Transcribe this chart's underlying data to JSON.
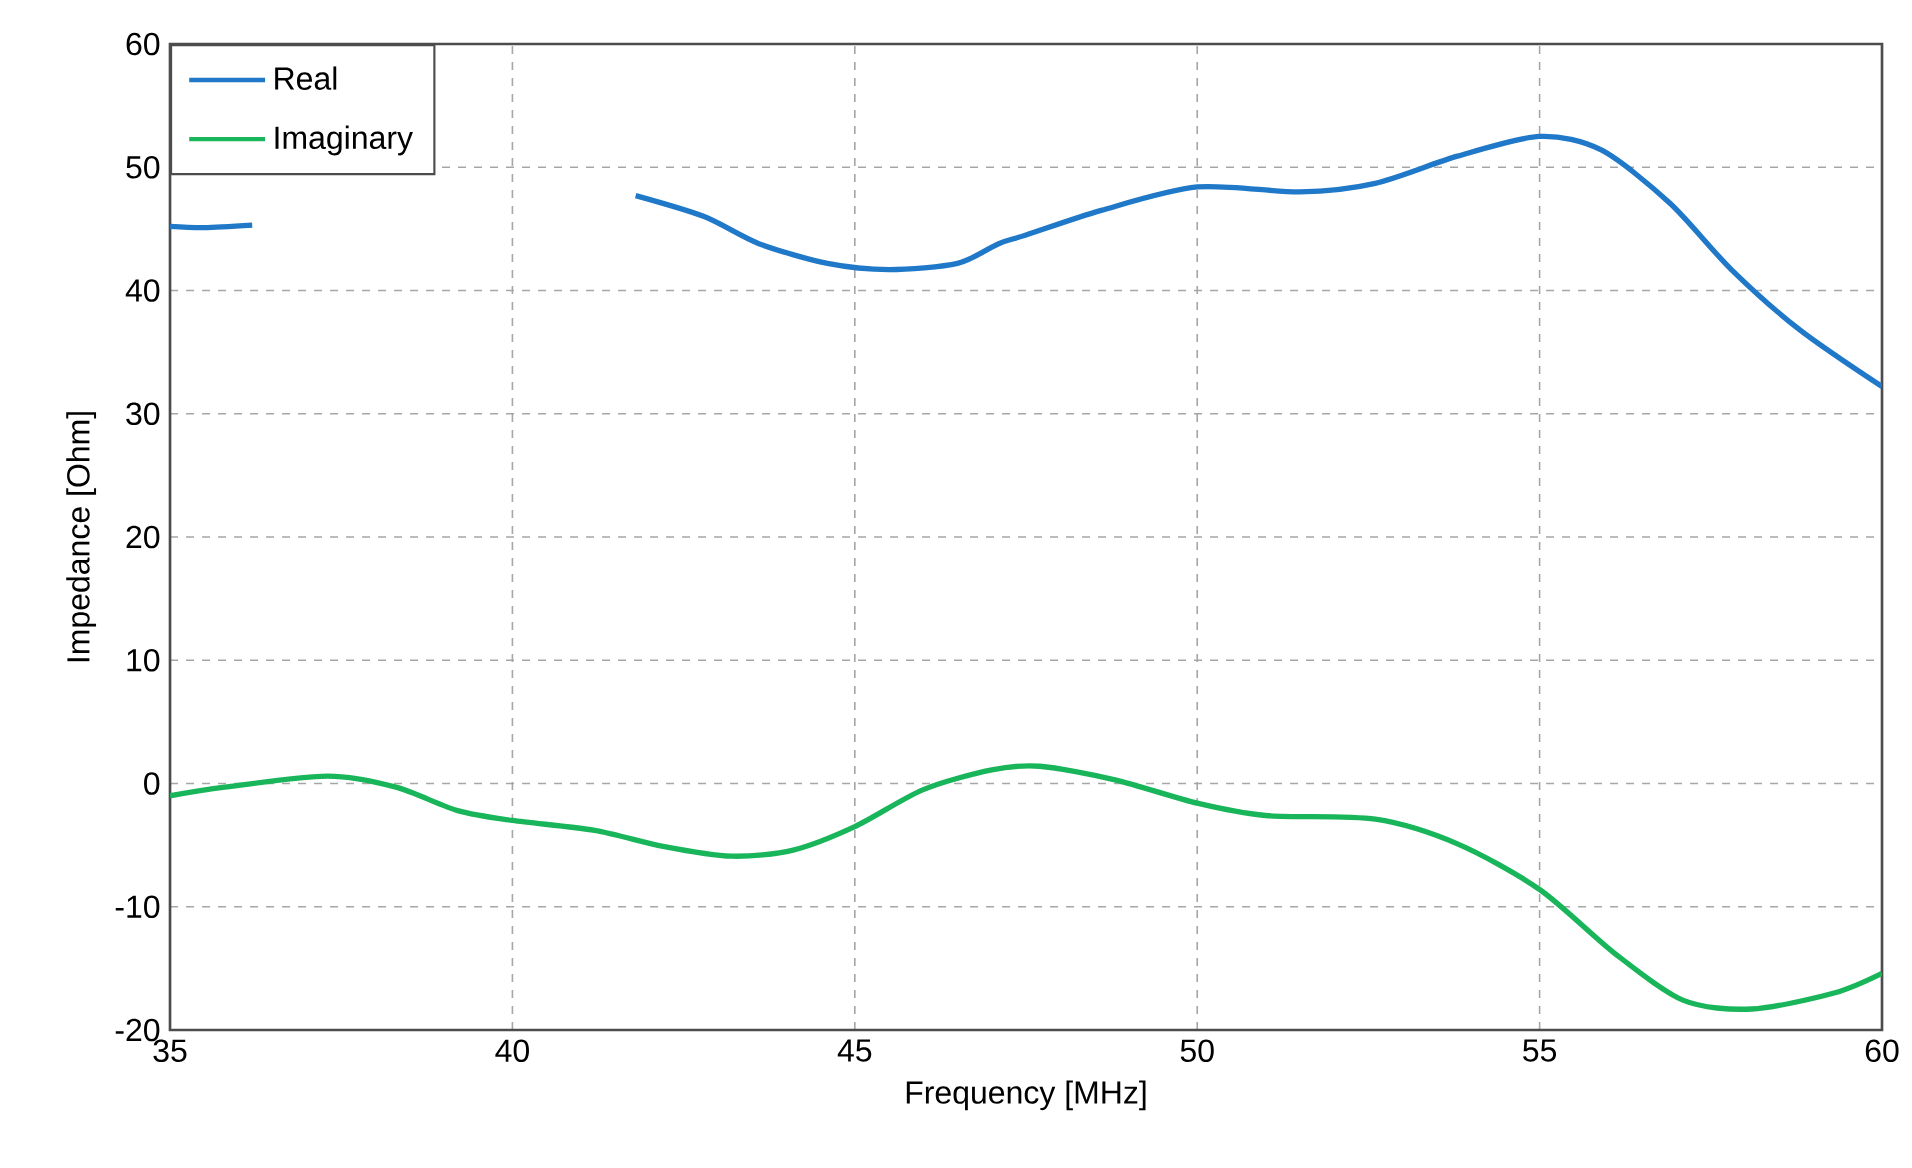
{
  "chart_data": {
    "type": "line",
    "xlabel": "Frequency [MHz]",
    "ylabel": "Impedance [Ohm]",
    "xlim": [
      35,
      60
    ],
    "ylim": [
      -20,
      60
    ],
    "xticks": [
      35,
      40,
      45,
      50,
      55,
      60
    ],
    "yticks": [
      -20,
      -10,
      0,
      10,
      20,
      30,
      40,
      50,
      60
    ],
    "grid": true,
    "legend": "top left",
    "line_style": "solid",
    "series": [
      {
        "name": "Real",
        "color": "#1f78c8",
        "x": [
          35,
          35.5,
          36.2,
          38,
          41.8,
          42.8,
          43.6,
          44.6,
          45.5,
          46.5,
          47.1,
          47.5,
          48.6,
          50,
          51.5,
          52.6,
          53.8,
          55,
          55.9,
          56.9,
          57.8,
          58.8,
          60
        ],
        "values": [
          45.2,
          45.1,
          45.3,
          null,
          47.7,
          46.0,
          43.8,
          42.2,
          41.7,
          42.2,
          43.8,
          44.5,
          46.5,
          48.4,
          48.0,
          48.7,
          50.9,
          52.5,
          51.4,
          47.1,
          41.7,
          36.8,
          32.2
        ]
      },
      {
        "name": "Imaginary",
        "color": "#19b55a",
        "x": [
          35,
          35.8,
          37.3,
          38.3,
          39.2,
          40,
          41.2,
          42.2,
          43.2,
          44.1,
          45,
          46,
          47,
          47.7,
          48.8,
          50,
          51,
          52.6,
          53.8,
          55,
          56.1,
          57.1,
          58.1,
          59.3,
          60
        ],
        "values": [
          -1.0,
          -0.3,
          0.6,
          -0.3,
          -2.2,
          -3.0,
          -3.8,
          -5.1,
          -5.9,
          -5.4,
          -3.5,
          -0.5,
          1.1,
          1.4,
          0.3,
          -1.6,
          -2.6,
          -2.9,
          -4.9,
          -8.6,
          -13.8,
          -17.6,
          -18.3,
          -17.0,
          -15.4
        ]
      }
    ]
  }
}
